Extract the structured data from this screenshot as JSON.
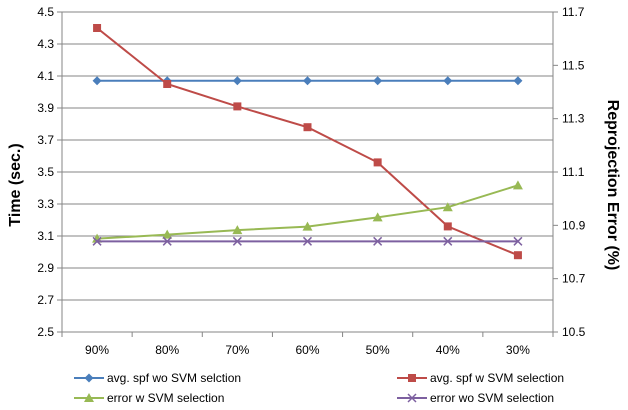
{
  "chart_data": {
    "type": "line",
    "categories": [
      "90%",
      "80%",
      "70%",
      "60%",
      "50%",
      "40%",
      "30%"
    ],
    "ylabel": "Time (sec.)",
    "y2label": "Reprojection Error (%)",
    "ylim": [
      2.5,
      4.5
    ],
    "y2lim": [
      10.5,
      11.7
    ],
    "yticks": [
      "2.5",
      "2.7",
      "2.9",
      "3.1",
      "3.3",
      "3.5",
      "3.7",
      "3.9",
      "4.1",
      "4.3",
      "4.5"
    ],
    "y2ticks": [
      "10.5",
      "10.7",
      "10.9",
      "11.1",
      "11.3",
      "11.5",
      "11.7"
    ],
    "grid": true,
    "legend_position": "bottom",
    "series": [
      {
        "name": "avg. spf wo SVM selction",
        "axis": "left",
        "color": "#4A7EBB",
        "marker": "diamond",
        "values": [
          4.07,
          4.07,
          4.07,
          4.07,
          4.07,
          4.07,
          4.07
        ]
      },
      {
        "name": "avg. spf w SVM selection",
        "axis": "left",
        "color": "#BE4B48",
        "marker": "square",
        "values": [
          4.4,
          4.05,
          3.91,
          3.78,
          3.56,
          3.16,
          2.98
        ]
      },
      {
        "name": "error w SVM selection",
        "axis": "right",
        "color": "#98B954",
        "marker": "triangle",
        "values": [
          10.85,
          10.865,
          10.882,
          10.895,
          10.93,
          10.968,
          11.05
        ]
      },
      {
        "name": "error wo SVM selection",
        "axis": "right",
        "color": "#7D60A0",
        "marker": "x",
        "values": [
          10.84,
          10.84,
          10.84,
          10.84,
          10.84,
          10.84,
          10.84
        ]
      }
    ]
  }
}
